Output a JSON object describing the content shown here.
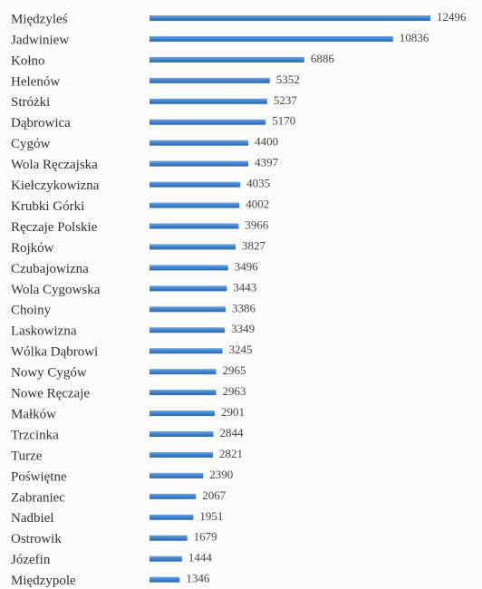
{
  "chart_data": {
    "type": "bar",
    "orientation": "horizontal",
    "color": "#3f82cc",
    "categories": [
      "Międzyleś",
      "Jadwiniew",
      "Kołno",
      "Helenów",
      "Stróżki",
      "Dąbrowica",
      "Cygów",
      "Wola Ręczajska",
      "Kiełczykowizna",
      "Krubki Górki",
      "Ręczaje Polskie",
      "Rojków",
      "Czubajowizna",
      "Wola Cygowska",
      "Choiny",
      "Laskowizna",
      "Wólka Dąbrowi",
      "Nowy Cygów",
      "Nowe Ręczaje",
      "Małków",
      "Trzcinka",
      "Turze",
      "Poświętne",
      "Zabraniec",
      "Nadbiel",
      "Ostrowik",
      "Józefin",
      "Międzypole"
    ],
    "values": [
      12496,
      10836,
      6886,
      5352,
      5237,
      5170,
      4400,
      4397,
      4035,
      4002,
      3966,
      3827,
      3496,
      3443,
      3386,
      3349,
      3245,
      2965,
      2963,
      2901,
      2844,
      2821,
      2390,
      2067,
      1951,
      1679,
      1444,
      1346
    ]
  }
}
